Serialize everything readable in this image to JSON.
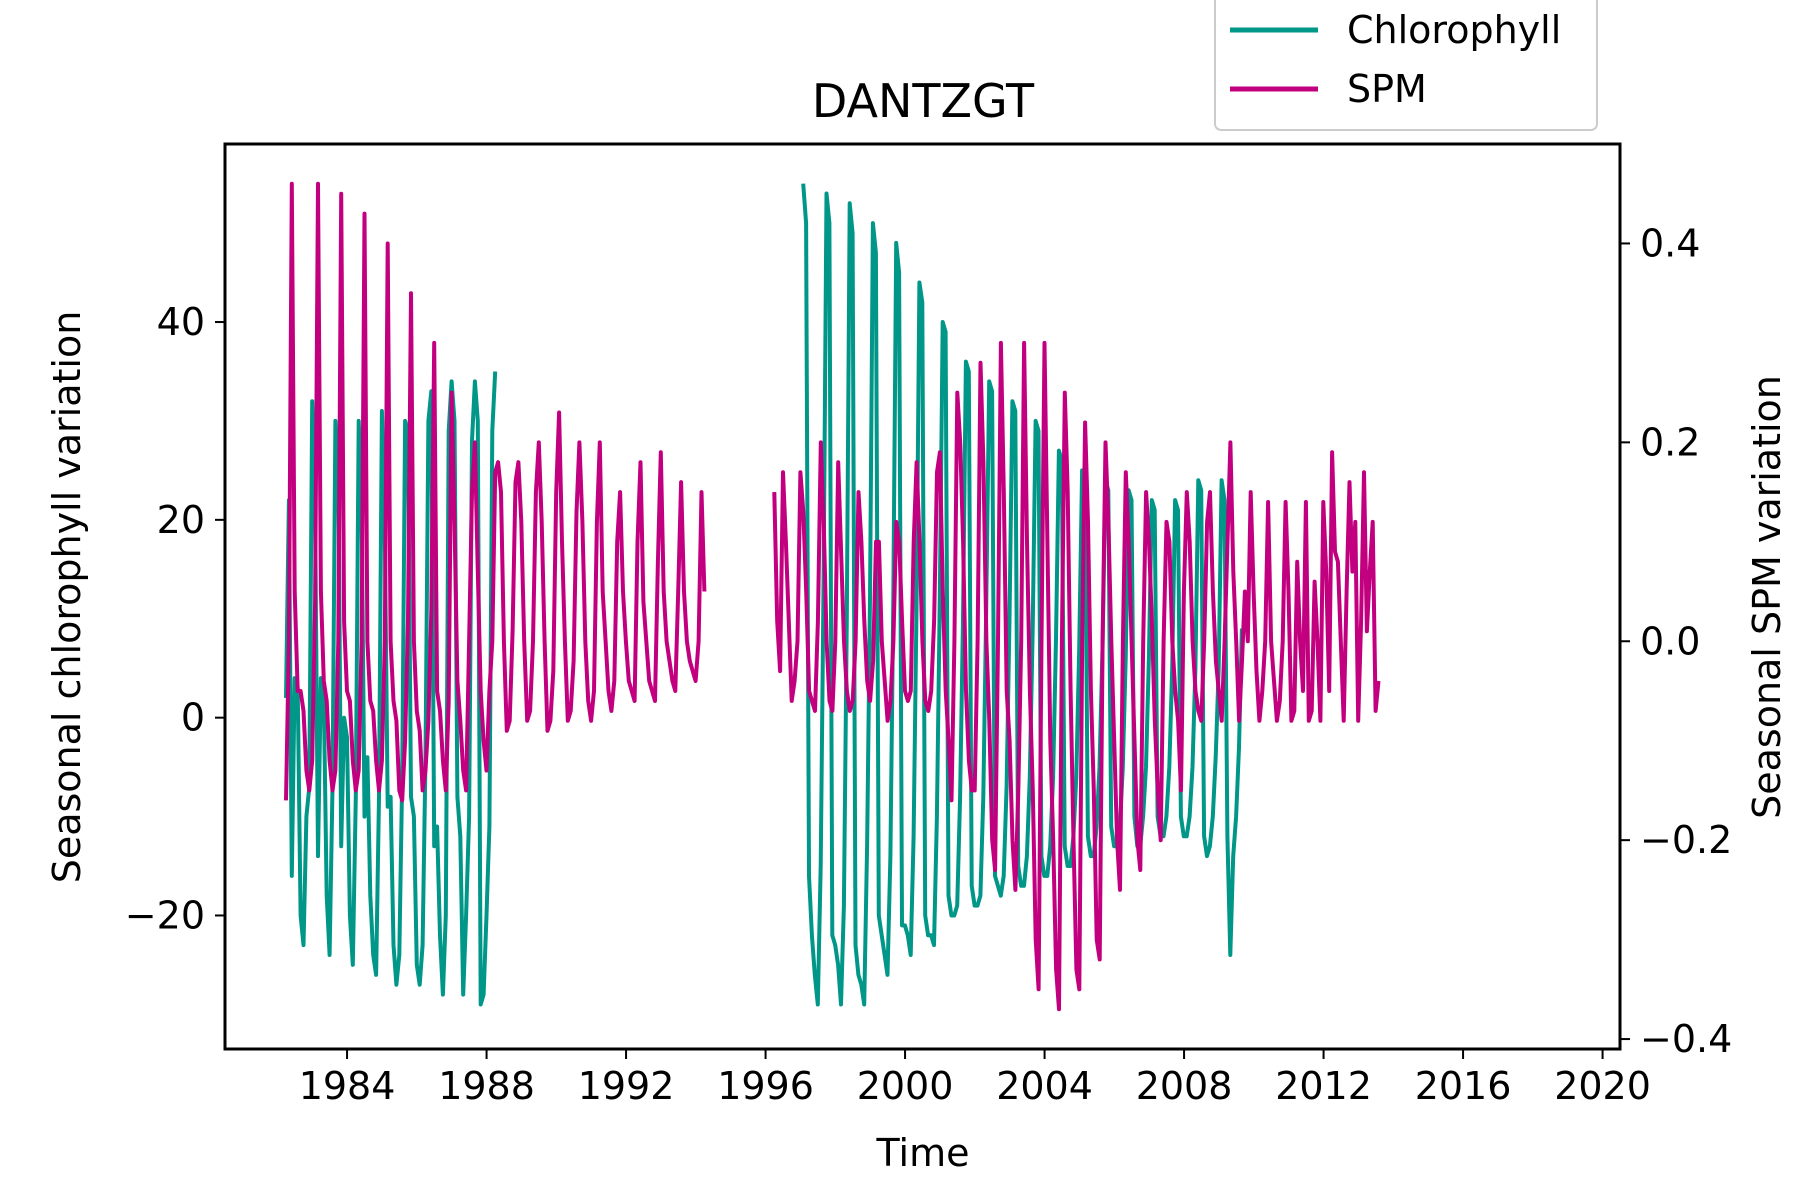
{
  "chart_data": {
    "type": "line",
    "title": "DANTZGT",
    "xlabel": "Time",
    "ylabel": "Seasonal chlorophyll variation",
    "y2label": "Seasonal SPM variation",
    "xlim": [
      1980.5,
      2020.5
    ],
    "ylim": [
      -33.5,
      58
    ],
    "y2lim": [
      -0.41,
      0.5
    ],
    "xticks": [
      1984,
      1988,
      1992,
      1996,
      2000,
      2004,
      2008,
      2012,
      2016,
      2020
    ],
    "yticks": [
      -20,
      0,
      20,
      40
    ],
    "y2ticks": [
      -0.4,
      -0.2,
      0.0,
      0.2,
      0.4
    ],
    "grid": false,
    "legend_position": "top-right, above plot",
    "series": [
      {
        "name": "Chlorophyll",
        "axis": "left",
        "color": "#009688",
        "segments": [
          {
            "start": 1982.25,
            "step": 0.0833,
            "values": [
              2,
              22,
              -16,
              4,
              3,
              -20,
              -23,
              -10,
              -7,
              32,
              21,
              -14,
              4,
              2,
              -18,
              -24,
              -7,
              30,
              26,
              -13,
              0,
              -2,
              -20,
              -25,
              -8,
              30,
              22,
              -10,
              -4,
              -18,
              -24,
              -26,
              -8,
              31,
              19,
              -9,
              -8,
              -23,
              -27,
              -24,
              -6,
              30,
              29,
              -8,
              -10,
              -25,
              -27,
              -23,
              -4,
              30,
              33,
              -13,
              -11,
              -22,
              -28,
              -20,
              29,
              34,
              30,
              -8,
              -12,
              -28,
              -20,
              -10,
              28,
              34,
              30,
              -29,
              -28,
              -20,
              -11,
              29,
              35
            ]
          },
          {
            "start": 1997.08,
            "step": 0.0833,
            "values": [
              54,
              50,
              -16,
              -22,
              -26,
              -29,
              -15,
              14,
              53,
              50,
              -22,
              -23,
              -25,
              -29,
              -19,
              10,
              52,
              49,
              -23,
              -26,
              -27,
              -29,
              -13,
              12,
              50,
              47,
              -20,
              -22,
              -24,
              -26,
              -14,
              12,
              48,
              45,
              -21,
              -21,
              -22,
              -24,
              -12,
              11,
              44,
              42,
              -20,
              -22,
              -22,
              -23,
              -10,
              12,
              40,
              39,
              -18,
              -20,
              -20,
              -19,
              -8,
              10,
              36,
              35,
              -17,
              -19,
              -19,
              -18,
              -8,
              11,
              34,
              33,
              -16,
              -17,
              -18,
              -16,
              -7,
              10,
              32,
              31,
              -15,
              -17,
              -17,
              -14,
              -6,
              9,
              30,
              29,
              -14,
              -16,
              -16,
              -13,
              -6,
              8,
              27,
              26,
              -13,
              -15,
              -15,
              -12,
              -6,
              7,
              25,
              24,
              -12,
              -14,
              -14,
              -11,
              -5,
              7,
              24,
              23,
              -11,
              -13,
              -13,
              -11,
              -5,
              6,
              23,
              22,
              -10,
              -13,
              -13,
              -10,
              -5,
              6,
              22,
              21,
              -10,
              -12,
              -12,
              -10,
              -5,
              5,
              22,
              21,
              -10,
              -12,
              -12,
              -10,
              -5,
              5,
              24,
              23,
              -12,
              -14,
              -13,
              -10,
              -4,
              5,
              24,
              22,
              -12,
              -24,
              -14,
              -10,
              -3,
              9
            ]
          }
        ]
      },
      {
        "name": "SPM",
        "axis": "right",
        "color": "#c2007f",
        "segments": [
          {
            "start": 1982.25,
            "step": 0.0833,
            "values": [
              -0.16,
              0.0,
              0.46,
              0.05,
              -0.05,
              -0.05,
              -0.07,
              -0.13,
              -0.15,
              -0.12,
              0.04,
              0.46,
              0.05,
              -0.04,
              -0.06,
              -0.12,
              -0.15,
              -0.13,
              0.0,
              0.45,
              0.02,
              -0.05,
              -0.06,
              -0.12,
              -0.15,
              -0.13,
              0.0,
              0.43,
              0.0,
              -0.06,
              -0.07,
              -0.12,
              -0.15,
              -0.12,
              0.0,
              0.4,
              0.0,
              -0.06,
              -0.08,
              -0.15,
              -0.16,
              -0.1,
              0.02,
              0.35,
              0.0,
              -0.07,
              -0.09,
              -0.15,
              -0.13,
              -0.08,
              0.03,
              0.3,
              -0.05,
              -0.07,
              -0.12,
              -0.15,
              -0.06,
              0.25,
              0.12,
              -0.04,
              -0.08,
              -0.13,
              -0.15,
              0.0,
              0.15,
              0.2,
              0.07,
              -0.05,
              -0.1,
              -0.13,
              -0.05,
              0.0,
              0.17,
              0.18,
              0.15,
              0.0,
              -0.09,
              -0.08,
              0.01,
              0.16,
              0.18,
              0.12,
              0.0,
              -0.08,
              -0.07,
              0.0,
              0.15,
              0.2,
              0.12,
              0.0,
              -0.09,
              -0.08,
              -0.03,
              0.15,
              0.23,
              0.1,
              0.0,
              -0.08,
              -0.07,
              -0.02,
              0.13,
              0.2,
              0.12,
              0.0,
              -0.06,
              -0.08,
              -0.05,
              0.12,
              0.2,
              0.05,
              0.0,
              -0.05,
              -0.07,
              -0.04,
              0.1,
              0.15,
              0.05,
              0.0,
              -0.04,
              -0.05,
              -0.06,
              0.1,
              0.18,
              0.04,
              0.0,
              -0.04,
              -0.05,
              -0.06,
              0.08,
              0.19,
              0.05,
              0.0,
              -0.02,
              -0.04,
              -0.05,
              0.05,
              0.16,
              0.05,
              0.0,
              -0.02,
              -0.03,
              -0.04,
              0.0,
              0.15,
              0.05
            ]
          },
          {
            "start": 1996.25,
            "step": 0.0833,
            "values": [
              0.15,
              0.02,
              -0.03,
              0.17,
              0.1,
              0.02,
              -0.06,
              -0.04,
              0.0,
              0.17,
              0.13,
              0.05,
              -0.05,
              -0.06,
              -0.07,
              0.02,
              0.2,
              0.12,
              0.0,
              -0.06,
              -0.07,
              0.0,
              0.18,
              0.09,
              0.0,
              -0.05,
              -0.07,
              -0.06,
              0.0,
              0.15,
              0.1,
              0.02,
              -0.04,
              -0.06,
              -0.02,
              0.1,
              0.1,
              0.0,
              -0.04,
              -0.08,
              -0.06,
              0.0,
              0.12,
              0.1,
              0.02,
              -0.05,
              -0.06,
              -0.05,
              0.1,
              0.18,
              0.1,
              0.0,
              -0.06,
              -0.07,
              -0.05,
              0.02,
              0.17,
              0.19,
              0.05,
              -0.05,
              -0.1,
              -0.16,
              0.0,
              0.25,
              0.2,
              0.1,
              -0.05,
              -0.12,
              -0.15,
              -0.15,
              0.0,
              0.28,
              0.18,
              0.0,
              -0.08,
              -0.2,
              -0.23,
              0.0,
              0.3,
              0.15,
              -0.05,
              -0.1,
              -0.2,
              -0.25,
              -0.15,
              0.0,
              0.3,
              0.1,
              -0.05,
              -0.15,
              -0.3,
              -0.35,
              0.0,
              0.3,
              0.1,
              -0.1,
              -0.2,
              -0.33,
              -0.37,
              0.0,
              0.25,
              0.15,
              -0.05,
              -0.2,
              -0.33,
              -0.35,
              0.0,
              0.22,
              0.12,
              -0.05,
              -0.15,
              -0.3,
              -0.32,
              0.0,
              0.2,
              0.12,
              0.0,
              -0.1,
              -0.2,
              -0.25,
              0.0,
              0.17,
              0.1,
              0.0,
              -0.1,
              -0.2,
              -0.23,
              0.0,
              0.15,
              0.1,
              0.02,
              -0.08,
              -0.15,
              -0.2,
              0.0,
              0.12,
              0.1,
              0.0,
              -0.05,
              -0.08,
              -0.15,
              0.05,
              0.15,
              0.1,
              0.0,
              -0.05,
              -0.07,
              -0.08,
              0.0,
              0.12,
              0.15,
              0.05,
              -0.02,
              -0.05,
              -0.08,
              0.0,
              0.1,
              0.2,
              0.07,
              0.0,
              -0.08,
              -0.02,
              0.05,
              0.0,
              0.15,
              0.05,
              -0.03,
              -0.08,
              -0.05,
              0.0,
              0.14,
              0.0,
              -0.04,
              -0.08,
              -0.06,
              0.0,
              0.14,
              0.05,
              -0.08,
              -0.07,
              0.08,
              0.0,
              -0.05,
              0.14,
              -0.08,
              -0.07,
              0.06,
              0.0,
              -0.08,
              0.14,
              0.07,
              -0.05,
              0.19,
              0.09,
              0.08,
              0.0,
              -0.08,
              0.05,
              0.16,
              0.07,
              0.12,
              -0.08,
              0.02,
              0.17,
              0.01,
              0.07,
              0.12,
              -0.07,
              -0.04
            ]
          }
        ]
      }
    ]
  }
}
